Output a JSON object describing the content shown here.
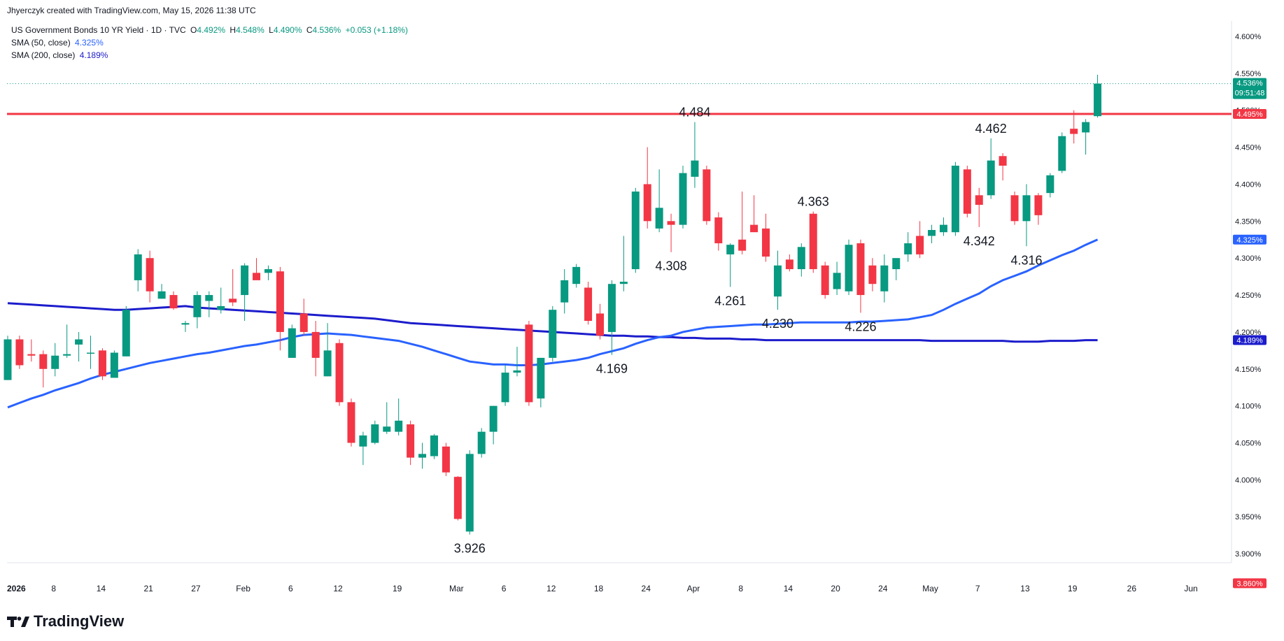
{
  "header": {
    "credit": "Jhyerczyk created with TradingView.com, May 15, 2026 11:38 UTC"
  },
  "legend": {
    "symbol": "US Government Bonds 10 YR Yield · 1D · TVC",
    "o_label": "O",
    "o_value": "4.492%",
    "h_label": "H",
    "h_value": "4.548%",
    "l_label": "L",
    "l_value": "4.490%",
    "c_label": "C",
    "c_value": "4.536%",
    "change": "+0.053 (+1.18%)",
    "sma50_label": "SMA (50, close)",
    "sma50_value": "4.325%",
    "sma200_label": "SMA (200, close)",
    "sma200_value": "4.189%"
  },
  "footer": {
    "brand": "TradingView"
  },
  "colors": {
    "up": "#089981",
    "down": "#f23645",
    "sma50": "#2962ff",
    "sma200": "#1c1ccc",
    "resistance": "#f23645"
  },
  "chart_data": {
    "type": "candlestick",
    "y_axis_ticks": [
      "4.600%",
      "4.550%",
      "4.500%",
      "4.450%",
      "4.400%",
      "4.350%",
      "4.300%",
      "4.250%",
      "4.200%",
      "4.150%",
      "4.100%",
      "4.050%",
      "4.000%",
      "3.950%",
      "3.900%"
    ],
    "x_axis_ticks": [
      "2026",
      "8",
      "14",
      "21",
      "27",
      "Feb",
      "6",
      "12",
      "19",
      "Mar",
      "6",
      "12",
      "18",
      "24",
      "Apr",
      "8",
      "14",
      "20",
      "24",
      "May",
      "7",
      "13",
      "19",
      "26",
      "Jun"
    ],
    "ylim": [
      3.86,
      4.615
    ],
    "price_labels": {
      "last": "4.536%",
      "countdown": "09:51:48",
      "resistance": "4.495%",
      "sma50": "4.325%",
      "sma200": "4.189%",
      "bottom": "3.860%"
    },
    "resistance_level": 4.495,
    "candles": [
      {
        "o": 4.135,
        "h": 4.195,
        "l": 4.135,
        "c": 4.19
      },
      {
        "o": 4.19,
        "h": 4.195,
        "l": 4.15,
        "c": 4.155
      },
      {
        "o": 4.17,
        "h": 4.19,
        "l": 4.16,
        "c": 4.168
      },
      {
        "o": 4.17,
        "h": 4.175,
        "l": 4.125,
        "c": 4.15
      },
      {
        "o": 4.15,
        "h": 4.185,
        "l": 4.14,
        "c": 4.168
      },
      {
        "o": 4.168,
        "h": 4.21,
        "l": 4.165,
        "c": 4.17
      },
      {
        "o": 4.183,
        "h": 4.2,
        "l": 4.16,
        "c": 4.19
      },
      {
        "o": 4.172,
        "h": 4.195,
        "l": 4.15,
        "c": 4.172
      },
      {
        "o": 4.175,
        "h": 4.178,
        "l": 4.135,
        "c": 4.14
      },
      {
        "o": 4.138,
        "h": 4.175,
        "l": 4.138,
        "c": 4.172
      },
      {
        "o": 4.167,
        "h": 4.235,
        "l": 4.167,
        "c": 4.23
      },
      {
        "o": 4.27,
        "h": 4.312,
        "l": 4.255,
        "c": 4.305
      },
      {
        "o": 4.3,
        "h": 4.31,
        "l": 4.24,
        "c": 4.255
      },
      {
        "o": 4.245,
        "h": 4.265,
        "l": 4.245,
        "c": 4.255
      },
      {
        "o": 4.25,
        "h": 4.255,
        "l": 4.23,
        "c": 4.232
      },
      {
        "o": 4.21,
        "h": 4.215,
        "l": 4.2,
        "c": 4.212
      },
      {
        "o": 4.22,
        "h": 4.255,
        "l": 4.205,
        "c": 4.25
      },
      {
        "o": 4.242,
        "h": 4.255,
        "l": 4.22,
        "c": 4.25
      },
      {
        "o": 4.23,
        "h": 4.26,
        "l": 4.225,
        "c": 4.235
      },
      {
        "o": 4.245,
        "h": 4.285,
        "l": 4.235,
        "c": 4.24
      },
      {
        "o": 4.25,
        "h": 4.293,
        "l": 4.215,
        "c": 4.29
      },
      {
        "o": 4.28,
        "h": 4.3,
        "l": 4.275,
        "c": 4.27
      },
      {
        "o": 4.28,
        "h": 4.29,
        "l": 4.27,
        "c": 4.285
      },
      {
        "o": 4.282,
        "h": 4.288,
        "l": 4.175,
        "c": 4.2
      },
      {
        "o": 4.165,
        "h": 4.21,
        "l": 4.165,
        "c": 4.205
      },
      {
        "o": 4.225,
        "h": 4.245,
        "l": 4.195,
        "c": 4.2
      },
      {
        "o": 4.2,
        "h": 4.215,
        "l": 4.14,
        "c": 4.165
      },
      {
        "o": 4.14,
        "h": 4.212,
        "l": 4.14,
        "c": 4.175
      },
      {
        "o": 4.185,
        "h": 4.19,
        "l": 4.1,
        "c": 4.105
      },
      {
        "o": 4.105,
        "h": 4.11,
        "l": 4.045,
        "c": 4.05
      },
      {
        "o": 4.045,
        "h": 4.065,
        "l": 4.02,
        "c": 4.06
      },
      {
        "o": 4.05,
        "h": 4.08,
        "l": 4.048,
        "c": 4.075
      },
      {
        "o": 4.065,
        "h": 4.105,
        "l": 4.062,
        "c": 4.072
      },
      {
        "o": 4.065,
        "h": 4.11,
        "l": 4.06,
        "c": 4.08
      },
      {
        "o": 4.075,
        "h": 4.08,
        "l": 4.02,
        "c": 4.03
      },
      {
        "o": 4.03,
        "h": 4.05,
        "l": 4.015,
        "c": 4.035
      },
      {
        "o": 4.032,
        "h": 4.062,
        "l": 4.028,
        "c": 4.06
      },
      {
        "o": 4.045,
        "h": 4.05,
        "l": 4.005,
        "c": 4.01
      },
      {
        "o": 4.004,
        "h": 4.005,
        "l": 3.945,
        "c": 3.947
      },
      {
        "o": 3.93,
        "h": 4.04,
        "l": 3.926,
        "c": 4.035
      },
      {
        "o": 4.035,
        "h": 4.07,
        "l": 4.03,
        "c": 4.065
      },
      {
        "o": 4.065,
        "h": 4.1,
        "l": 4.048,
        "c": 4.1
      },
      {
        "o": 4.105,
        "h": 4.155,
        "l": 4.1,
        "c": 4.145
      },
      {
        "o": 4.145,
        "h": 4.18,
        "l": 4.14,
        "c": 4.148
      },
      {
        "o": 4.21,
        "h": 4.215,
        "l": 4.1,
        "c": 4.105
      },
      {
        "o": 4.11,
        "h": 4.165,
        "l": 4.098,
        "c": 4.165
      },
      {
        "o": 4.165,
        "h": 4.235,
        "l": 4.16,
        "c": 4.23
      },
      {
        "o": 4.24,
        "h": 4.285,
        "l": 4.225,
        "c": 4.27
      },
      {
        "o": 4.265,
        "h": 4.292,
        "l": 4.26,
        "c": 4.288
      },
      {
        "o": 4.26,
        "h": 4.268,
        "l": 4.21,
        "c": 4.215
      },
      {
        "o": 4.225,
        "h": 4.238,
        "l": 4.19,
        "c": 4.195
      },
      {
        "o": 4.2,
        "h": 4.27,
        "l": 4.169,
        "c": 4.265
      },
      {
        "o": 4.265,
        "h": 4.33,
        "l": 4.255,
        "c": 4.268
      },
      {
        "o": 4.285,
        "h": 4.395,
        "l": 4.28,
        "c": 4.39
      },
      {
        "o": 4.4,
        "h": 4.45,
        "l": 4.34,
        "c": 4.35
      },
      {
        "o": 4.34,
        "h": 4.42,
        "l": 4.335,
        "c": 4.368
      },
      {
        "o": 4.35,
        "h": 4.36,
        "l": 4.308,
        "c": 4.345
      },
      {
        "o": 4.345,
        "h": 4.425,
        "l": 4.34,
        "c": 4.415
      },
      {
        "o": 4.41,
        "h": 4.484,
        "l": 4.395,
        "c": 4.432
      },
      {
        "o": 4.42,
        "h": 4.425,
        "l": 4.345,
        "c": 4.35
      },
      {
        "o": 4.355,
        "h": 4.362,
        "l": 4.31,
        "c": 4.32
      },
      {
        "o": 4.305,
        "h": 4.32,
        "l": 4.261,
        "c": 4.318
      },
      {
        "o": 4.325,
        "h": 4.39,
        "l": 4.305,
        "c": 4.31
      },
      {
        "o": 4.345,
        "h": 4.385,
        "l": 4.34,
        "c": 4.335
      },
      {
        "o": 4.34,
        "h": 4.36,
        "l": 4.295,
        "c": 4.302
      },
      {
        "o": 4.248,
        "h": 4.31,
        "l": 4.23,
        "c": 4.29
      },
      {
        "o": 4.298,
        "h": 4.305,
        "l": 4.282,
        "c": 4.285
      },
      {
        "o": 4.285,
        "h": 4.32,
        "l": 4.275,
        "c": 4.315
      },
      {
        "o": 4.36,
        "h": 4.363,
        "l": 4.28,
        "c": 4.285
      },
      {
        "o": 4.29,
        "h": 4.295,
        "l": 4.245,
        "c": 4.25
      },
      {
        "o": 4.258,
        "h": 4.295,
        "l": 4.25,
        "c": 4.28
      },
      {
        "o": 4.255,
        "h": 4.325,
        "l": 4.25,
        "c": 4.318
      },
      {
        "o": 4.32,
        "h": 4.325,
        "l": 4.226,
        "c": 4.25
      },
      {
        "o": 4.29,
        "h": 4.3,
        "l": 4.255,
        "c": 4.265
      },
      {
        "o": 4.255,
        "h": 4.305,
        "l": 4.24,
        "c": 4.29
      },
      {
        "o": 4.285,
        "h": 4.3,
        "l": 4.27,
        "c": 4.3
      },
      {
        "o": 4.305,
        "h": 4.335,
        "l": 4.295,
        "c": 4.32
      },
      {
        "o": 4.33,
        "h": 4.35,
        "l": 4.3,
        "c": 4.305
      },
      {
        "o": 4.33,
        "h": 4.345,
        "l": 4.32,
        "c": 4.338
      },
      {
        "o": 4.335,
        "h": 4.355,
        "l": 4.33,
        "c": 4.345
      },
      {
        "o": 4.335,
        "h": 4.43,
        "l": 4.33,
        "c": 4.425
      },
      {
        "o": 4.42,
        "h": 4.425,
        "l": 4.355,
        "c": 4.36
      },
      {
        "o": 4.385,
        "h": 4.395,
        "l": 4.342,
        "c": 4.372
      },
      {
        "o": 4.385,
        "h": 4.462,
        "l": 4.38,
        "c": 4.432
      },
      {
        "o": 4.438,
        "h": 4.442,
        "l": 4.405,
        "c": 4.425
      },
      {
        "o": 4.385,
        "h": 4.39,
        "l": 4.345,
        "c": 4.35
      },
      {
        "o": 4.35,
        "h": 4.4,
        "l": 4.316,
        "c": 4.385
      },
      {
        "o": 4.385,
        "h": 4.388,
        "l": 4.345,
        "c": 4.358
      },
      {
        "o": 4.388,
        "h": 4.415,
        "l": 4.382,
        "c": 4.412
      },
      {
        "o": 4.418,
        "h": 4.47,
        "l": 4.415,
        "c": 4.465
      },
      {
        "o": 4.475,
        "h": 4.5,
        "l": 4.455,
        "c": 4.468
      },
      {
        "o": 4.47,
        "h": 4.488,
        "l": 4.44,
        "c": 4.484
      },
      {
        "o": 4.492,
        "h": 4.548,
        "l": 4.49,
        "c": 4.536
      }
    ],
    "sma50": [
      4.098,
      4.104,
      4.11,
      4.115,
      4.121,
      4.126,
      4.131,
      4.137,
      4.142,
      4.146,
      4.15,
      4.154,
      4.158,
      4.161,
      4.164,
      4.167,
      4.17,
      4.172,
      4.175,
      4.178,
      4.181,
      4.183,
      4.186,
      4.189,
      4.193,
      4.196,
      4.197,
      4.198,
      4.197,
      4.196,
      4.194,
      4.192,
      4.19,
      4.188,
      4.184,
      4.18,
      4.175,
      4.17,
      4.165,
      4.16,
      4.158,
      4.156,
      4.156,
      4.155,
      4.155,
      4.156,
      4.158,
      4.16,
      4.162,
      4.165,
      4.17,
      4.174,
      4.178,
      4.184,
      4.189,
      4.193,
      4.195,
      4.2,
      4.203,
      4.206,
      4.207,
      4.208,
      4.209,
      4.21,
      4.21,
      4.211,
      4.212,
      4.213,
      4.213,
      4.213,
      4.213,
      4.213,
      4.214,
      4.214,
      4.215,
      4.216,
      4.217,
      4.22,
      4.223,
      4.23,
      4.238,
      4.245,
      4.252,
      4.262,
      4.27,
      4.276,
      4.282,
      4.29,
      4.297,
      4.304,
      4.31,
      4.318,
      4.325
    ],
    "sma200": [
      4.239,
      4.238,
      4.237,
      4.236,
      4.235,
      4.234,
      4.233,
      4.232,
      4.231,
      4.23,
      4.23,
      4.231,
      4.232,
      4.233,
      4.234,
      4.235,
      4.233,
      4.232,
      4.231,
      4.23,
      4.229,
      4.228,
      4.227,
      4.226,
      4.225,
      4.224,
      4.223,
      4.222,
      4.221,
      4.22,
      4.219,
      4.218,
      4.216,
      4.214,
      4.212,
      4.211,
      4.21,
      4.209,
      4.208,
      4.207,
      4.206,
      4.205,
      4.204,
      4.203,
      4.202,
      4.201,
      4.2,
      4.199,
      4.198,
      4.197,
      4.196,
      4.195,
      4.195,
      4.194,
      4.194,
      4.193,
      4.193,
      4.192,
      4.192,
      4.191,
      4.191,
      4.191,
      4.19,
      4.19,
      4.189,
      4.189,
      4.189,
      4.189,
      4.189,
      4.189,
      4.189,
      4.189,
      4.189,
      4.189,
      4.189,
      4.189,
      4.189,
      4.189,
      4.188,
      4.188,
      4.188,
      4.188,
      4.188,
      4.188,
      4.188,
      4.187,
      4.187,
      4.187,
      4.188,
      4.188,
      4.188,
      4.189,
      4.189
    ],
    "annotations": [
      {
        "text": "3.926",
        "index": 39,
        "value": 3.926,
        "pos": "below"
      },
      {
        "text": "4.169",
        "index": 51,
        "value": 4.169,
        "pos": "below"
      },
      {
        "text": "4.308",
        "index": 56,
        "value": 4.308,
        "pos": "below"
      },
      {
        "text": "4.484",
        "index": 58,
        "value": 4.484,
        "pos": "above"
      },
      {
        "text": "4.261",
        "index": 61,
        "value": 4.261,
        "pos": "below"
      },
      {
        "text": "4.230",
        "index": 65,
        "value": 4.23,
        "pos": "below"
      },
      {
        "text": "4.363",
        "index": 68,
        "value": 4.363,
        "pos": "above"
      },
      {
        "text": "4.226",
        "index": 72,
        "value": 4.226,
        "pos": "below"
      },
      {
        "text": "4.462",
        "index": 83,
        "value": 4.462,
        "pos": "above"
      },
      {
        "text": "4.342",
        "index": 82,
        "value": 4.342,
        "pos": "below"
      },
      {
        "text": "4.316",
        "index": 86,
        "value": 4.316,
        "pos": "below"
      }
    ]
  }
}
